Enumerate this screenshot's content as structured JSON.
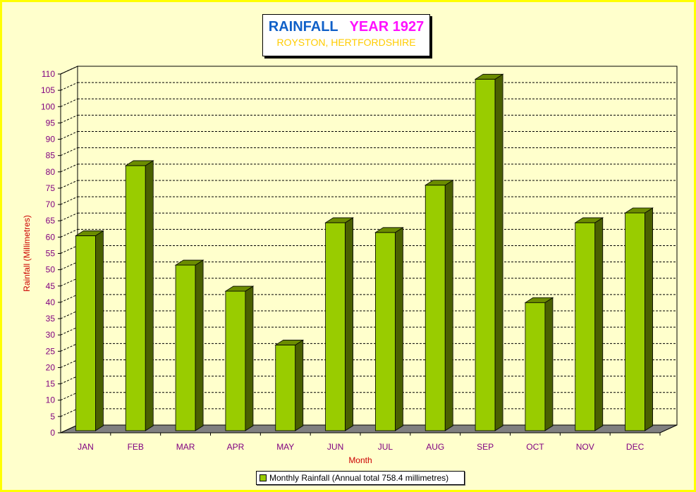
{
  "chart_data": {
    "type": "bar",
    "title": "RAINFALL",
    "title_year": "YEAR 1927",
    "subtitle": "ROYSTON, HERTFORDSHIRE",
    "xlabel": "Month",
    "ylabel": "Rainfall  (Millimetres)",
    "categories": [
      "JAN",
      "FEB",
      "MAR",
      "APR",
      "MAY",
      "JUN",
      "JUL",
      "AUG",
      "SEP",
      "OCT",
      "NOV",
      "DEC"
    ],
    "series": [
      {
        "name": "Monthly Rainfall (Annual total 758.4 millimetres)",
        "values": [
          61.5,
          83.0,
          52.5,
          44.5,
          28.0,
          65.5,
          62.5,
          77.0,
          109.5,
          41.0,
          65.5,
          68.5
        ]
      }
    ],
    "ylim": [
      0,
      110
    ],
    "yticks": [
      0,
      5,
      10,
      15,
      20,
      25,
      30,
      35,
      40,
      45,
      50,
      55,
      60,
      65,
      70,
      75,
      80,
      85,
      90,
      95,
      100,
      105,
      110
    ],
    "grid": true,
    "legend_position": "bottom",
    "colors": {
      "bar_front": "#99cc00",
      "bar_side": "#4a6000",
      "bar_top": "#6b8c00",
      "floor": "#808080",
      "tick_label": "#800080",
      "axis_title": "#cc0000"
    }
  }
}
